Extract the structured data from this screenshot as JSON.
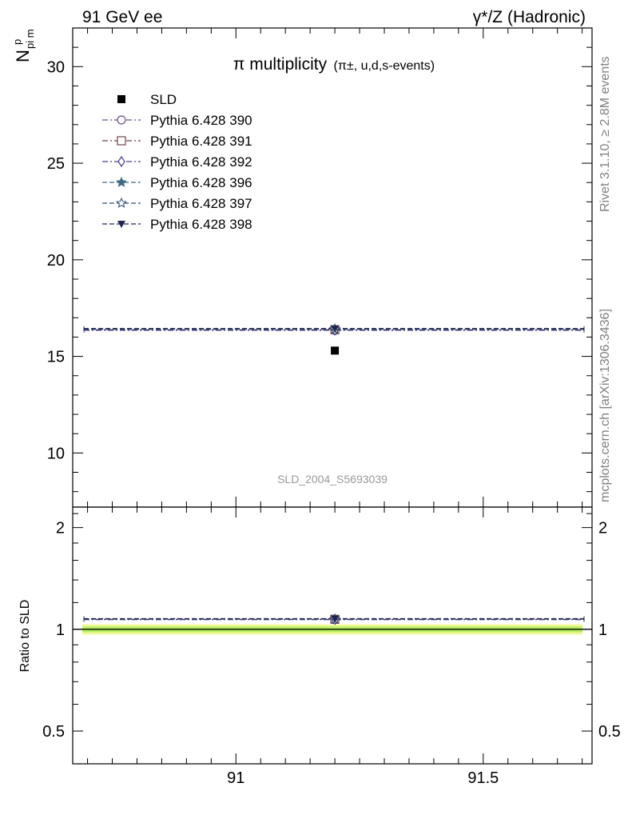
{
  "header": {
    "left": "91 GeV ee",
    "right": "γ*/Z (Hadronic)"
  },
  "side_labels": {
    "rivet": "Rivet 3.1.10, ≥ 2.8M events",
    "mcplots": "mcplots.cern.ch [arXiv:1306.3436]"
  },
  "watermark": "SLD_2004_S5693039",
  "chart_data": [
    {
      "type": "scatter",
      "title_main": "π multiplicity",
      "title_sub": "(π±, u,d,s-events)",
      "ylabel": "N",
      "ylabel_sub": "pi m",
      "ylabel_sup": "p",
      "xlim": [
        90.67,
        91.72
      ],
      "ylim": [
        7.2,
        32
      ],
      "yticks": [
        10,
        15,
        20,
        25,
        30
      ],
      "grid": false,
      "legend_position": "top-left",
      "x_bin": [
        90.67,
        91.72
      ],
      "series": [
        {
          "name": "SLD",
          "x": 91.2,
          "y": 15.3,
          "color": "#000000",
          "marker": "square-filled",
          "dash": "none"
        },
        {
          "name": "Pythia 6.428 390",
          "x": 91.2,
          "y": 16.35,
          "color": "#6a4c8c",
          "marker": "circle-open",
          "dash": "dashdot"
        },
        {
          "name": "Pythia 6.428 391",
          "x": 91.2,
          "y": 16.38,
          "color": "#70424a",
          "marker": "square-open",
          "dash": "dashdot"
        },
        {
          "name": "Pythia 6.428 392",
          "x": 91.2,
          "y": 16.36,
          "color": "#4d3a8c",
          "marker": "diamond-open",
          "dash": "dashdot"
        },
        {
          "name": "Pythia 6.428 396",
          "x": 91.2,
          "y": 16.4,
          "color": "#3e6a80",
          "marker": "star-filled",
          "dash": "dashed"
        },
        {
          "name": "Pythia 6.428 397",
          "x": 91.2,
          "y": 16.42,
          "color": "#2d4d70",
          "marker": "star-open",
          "dash": "dashed"
        },
        {
          "name": "Pythia 6.428 398",
          "x": 91.2,
          "y": 16.44,
          "color": "#1f2550",
          "marker": "triangle-down-filled",
          "dash": "dashed"
        }
      ]
    },
    {
      "type": "scatter",
      "ylabel": "Ratio to SLD",
      "xlabel": "",
      "xlim": [
        90.67,
        91.72
      ],
      "xticks": [
        91,
        91.5
      ],
      "xtick_labels": [
        "91",
        "91.5"
      ],
      "ylim": [
        0.4,
        2.3
      ],
      "y_scale": "log",
      "yticks": [
        0.5,
        1,
        2
      ],
      "ytick_labels": [
        "0.5",
        "1",
        "2"
      ],
      "reference_band": {
        "inner": [
          0.98,
          1.02
        ],
        "outer": [
          0.965,
          1.035
        ],
        "inner_color": "#b8f060",
        "outer_color": "#f0fa9a"
      },
      "series": [
        {
          "name": "Pythia 6.428 390",
          "x": 91.2,
          "y": 1.069,
          "color": "#6a4c8c",
          "marker": "circle-open",
          "dash": "dashdot"
        },
        {
          "name": "Pythia 6.428 391",
          "x": 91.2,
          "y": 1.071,
          "color": "#70424a",
          "marker": "square-open",
          "dash": "dashdot"
        },
        {
          "name": "Pythia 6.428 392",
          "x": 91.2,
          "y": 1.069,
          "color": "#4d3a8c",
          "marker": "diamond-open",
          "dash": "dashdot"
        },
        {
          "name": "Pythia 6.428 396",
          "x": 91.2,
          "y": 1.072,
          "color": "#3e6a80",
          "marker": "star-filled",
          "dash": "dashed"
        },
        {
          "name": "Pythia 6.428 397",
          "x": 91.2,
          "y": 1.073,
          "color": "#2d4d70",
          "marker": "star-open",
          "dash": "dashed"
        },
        {
          "name": "Pythia 6.428 398",
          "x": 91.2,
          "y": 1.075,
          "color": "#1f2550",
          "marker": "triangle-down-filled",
          "dash": "dashed"
        }
      ]
    }
  ]
}
